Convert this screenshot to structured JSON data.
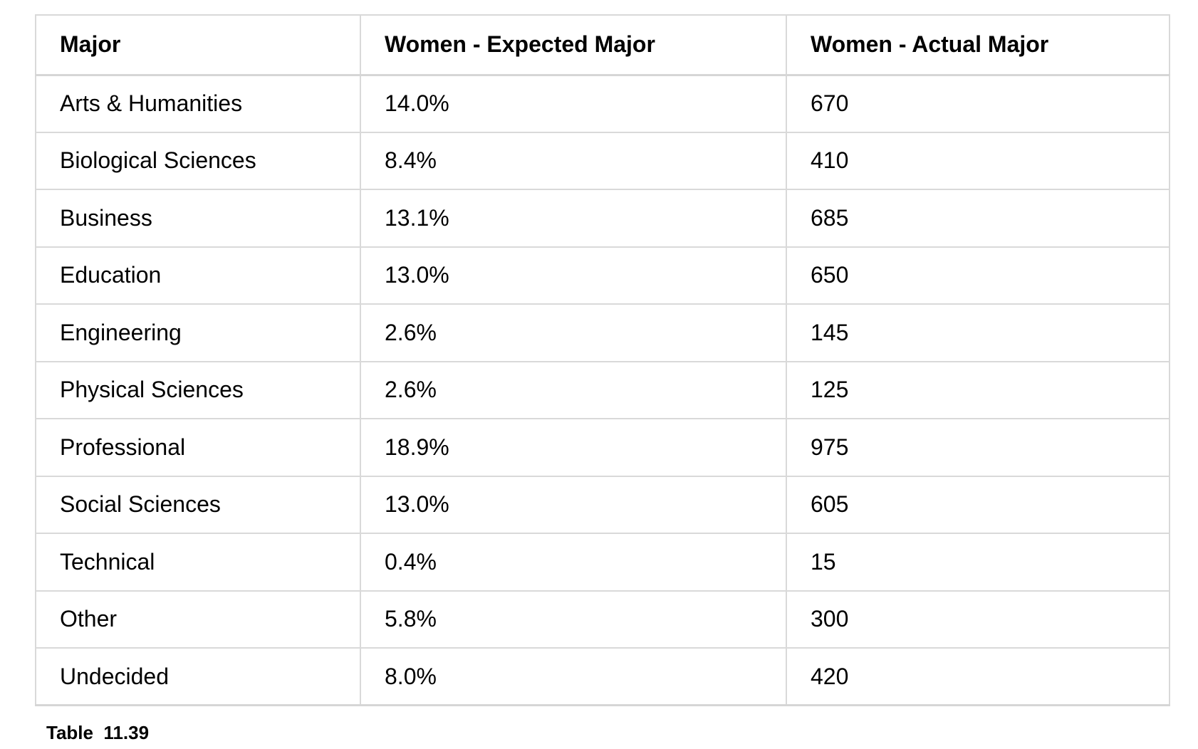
{
  "table": {
    "columns": [
      "Major",
      "Women - Expected Major",
      "Women - Actual Major"
    ],
    "rows": [
      [
        "Arts & Humanities",
        "14.0%",
        "670"
      ],
      [
        "Biological Sciences",
        "8.4%",
        "410"
      ],
      [
        "Business",
        "13.1%",
        "685"
      ],
      [
        "Education",
        "13.0%",
        "650"
      ],
      [
        "Engineering",
        "2.6%",
        "145"
      ],
      [
        "Physical Sciences",
        "2.6%",
        "125"
      ],
      [
        "Professional",
        "18.9%",
        "975"
      ],
      [
        "Social Sciences",
        "13.0%",
        "605"
      ],
      [
        "Technical",
        "0.4%",
        "15"
      ],
      [
        "Other",
        "5.8%",
        "300"
      ],
      [
        "Undecided",
        "8.0%",
        "420"
      ]
    ]
  },
  "caption": "Table  11.39"
}
